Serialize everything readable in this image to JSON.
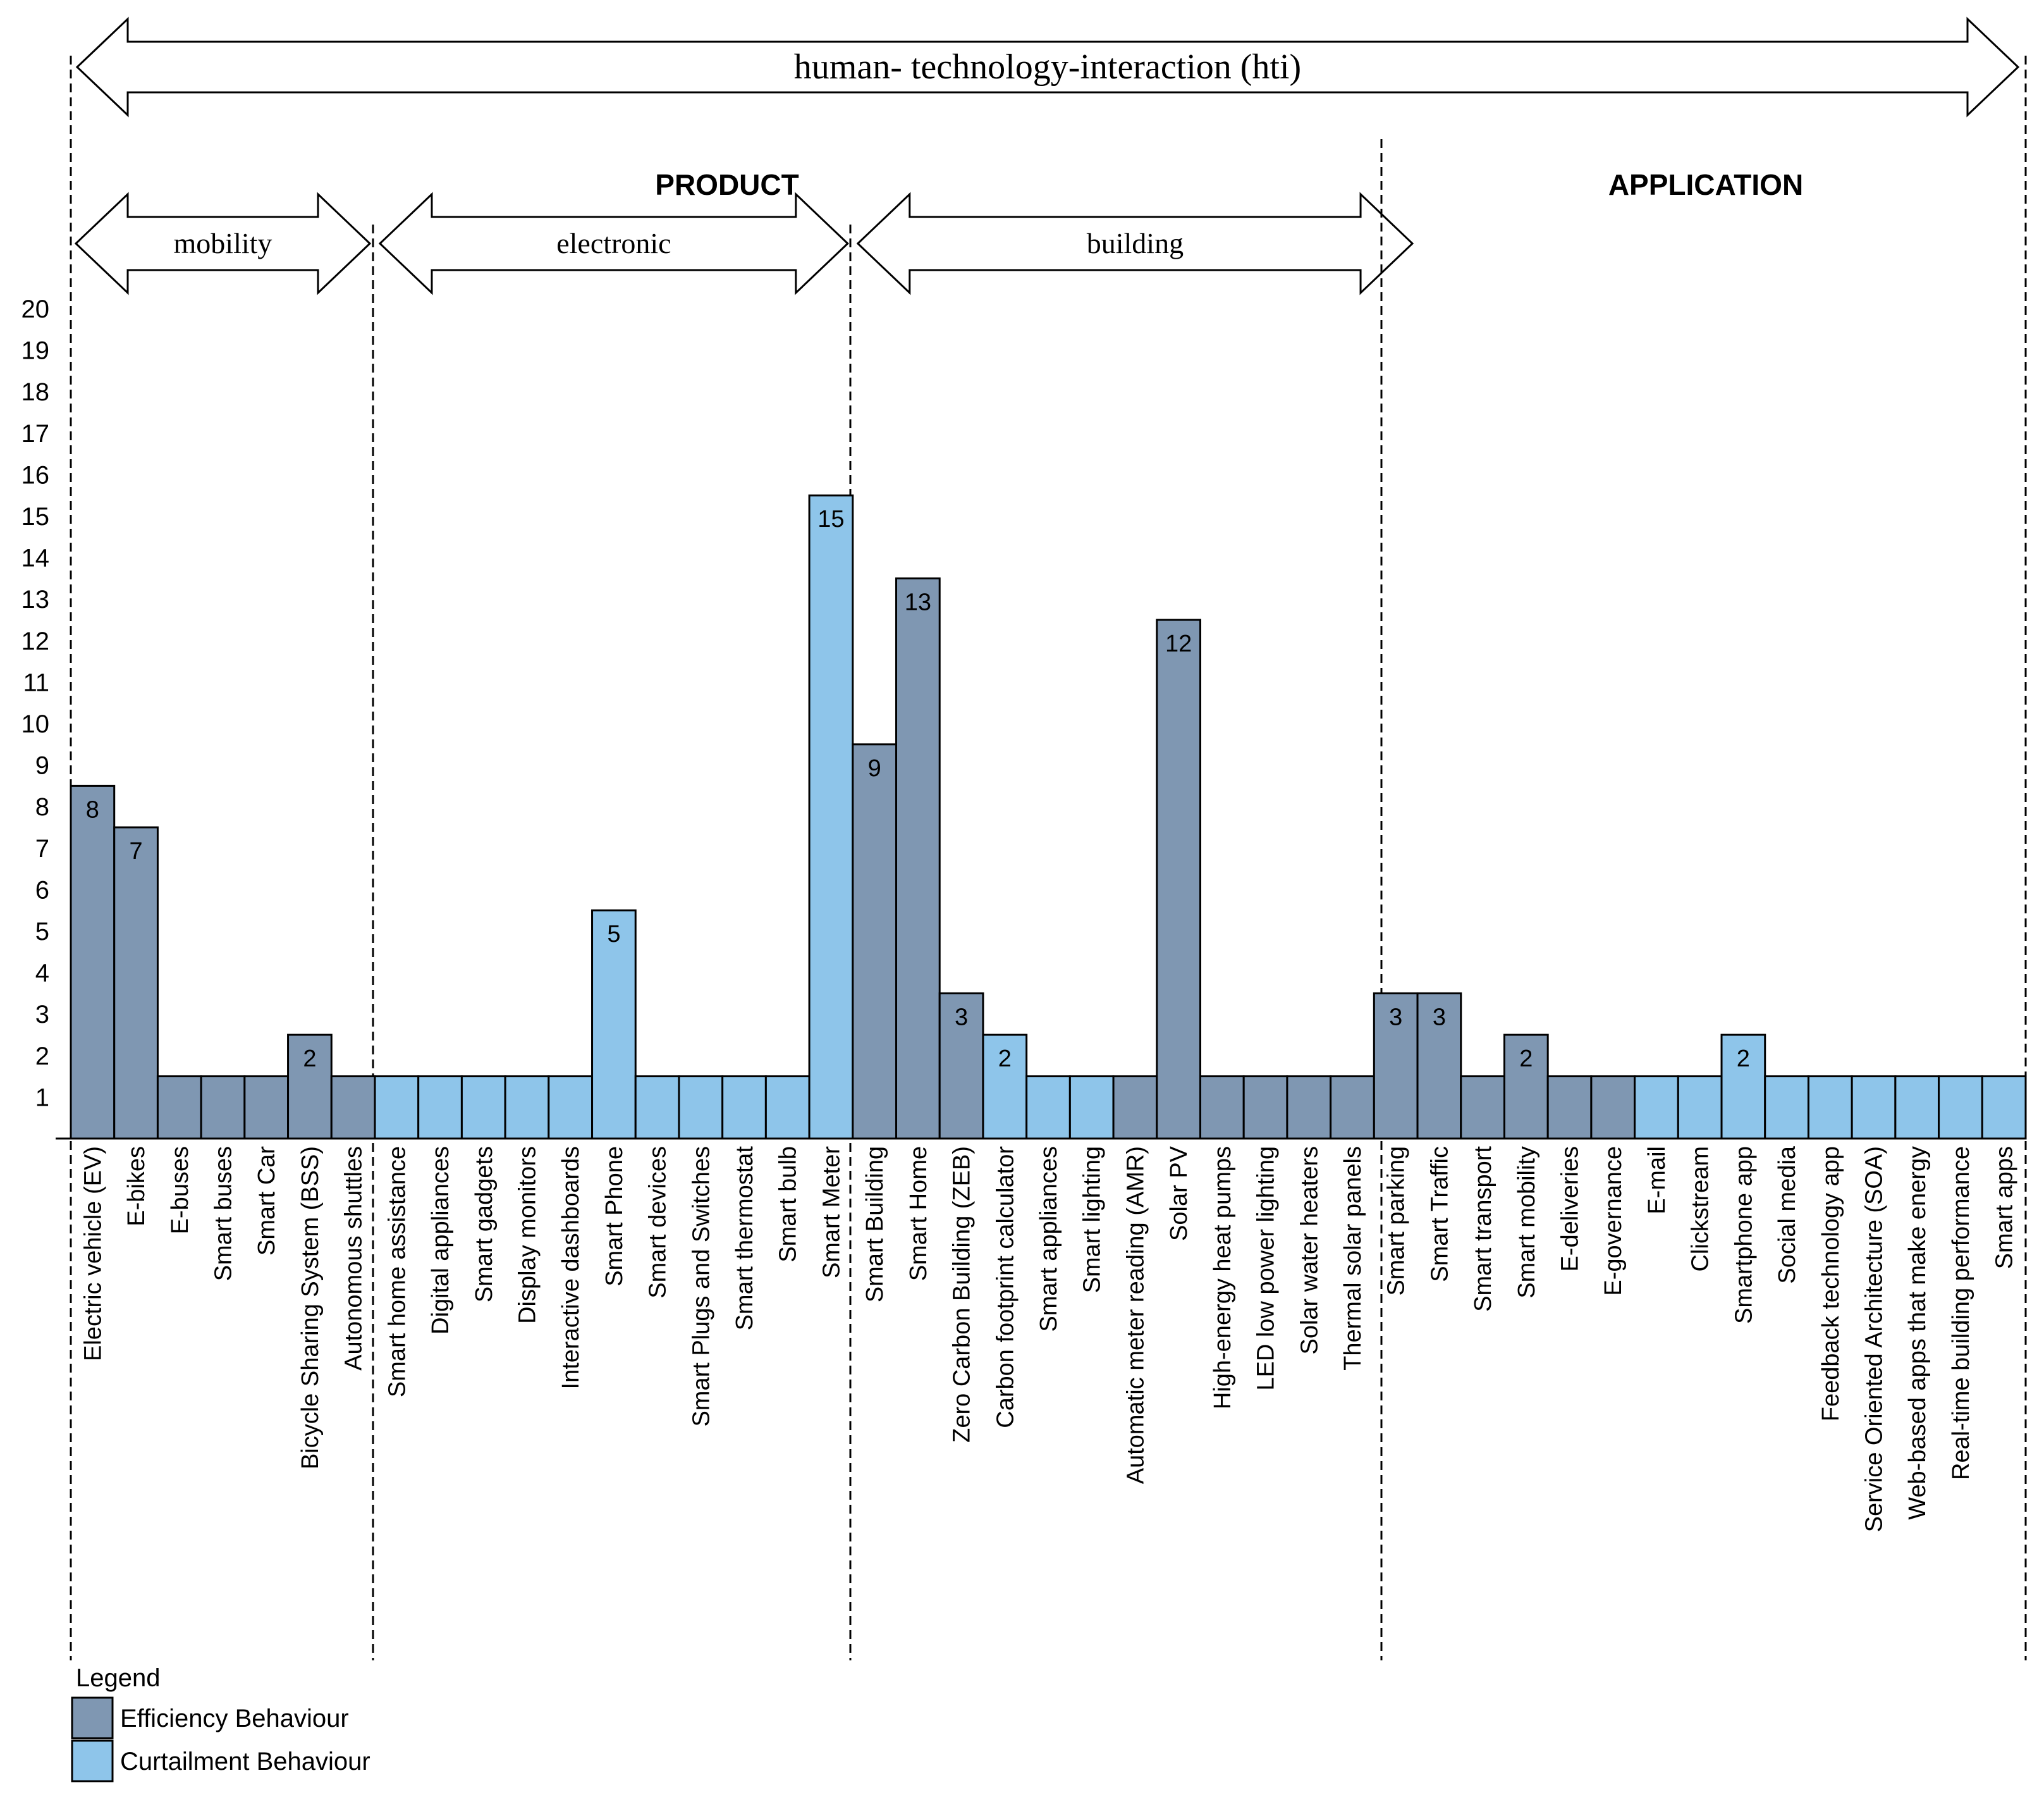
{
  "chart_data": {
    "type": "bar",
    "title": "human- technology-interaction (hti)",
    "ylim": [
      0,
      20
    ],
    "yticks": [
      1,
      2,
      3,
      4,
      5,
      6,
      7,
      8,
      9,
      10,
      11,
      12,
      13,
      14,
      15,
      16,
      17,
      18,
      19,
      20
    ],
    "xlabel": "",
    "ylabel": "",
    "section_headers": [
      "PRODUCT",
      "APPLICATION"
    ],
    "groups": [
      {
        "label": "mobility",
        "first": 0,
        "last": 6
      },
      {
        "label": "electronic",
        "first": 7,
        "last": 17
      },
      {
        "label": "building",
        "first": 18,
        "last": 30
      }
    ],
    "categories": [
      "Electric vehicle (EV)",
      "E-bikes",
      "E-buses",
      "Smart buses",
      "Smart Car",
      "Bicycle Sharing System (BSS)",
      "Autonomous shuttles",
      "Smart home assistance",
      "Digital appliances",
      "Smart gadgets",
      "Display monitors",
      "Interactive dashboards",
      "Smart Phone",
      "Smart devices",
      "Smart Plugs and Switches",
      "Smart thermostat",
      "Smart bulb",
      "Smart Meter",
      "Smart Building",
      "Smart Home",
      "Zero Carbon Building (ZEB)",
      "Carbon footprint calculator",
      "Smart appliances",
      "Smart lighting",
      "Automatic meter reading (AMR)",
      "Solar PV",
      "High-energy heat pumps",
      "LED low power lighting",
      "Solar water heaters",
      "Thermal solar panels",
      "Smart parking",
      "Smart Traffic",
      "Smart transport",
      "Smart mobility",
      "E-deliveries",
      "E-governance",
      "E-mail",
      "Clickstream",
      "Smartphone app",
      "Social media",
      "Feedback technology app",
      "Service Oriented Architecture (SOA)",
      "Web-based apps that make energy",
      "Real-time building performance",
      "Smart apps"
    ],
    "values": [
      8,
      7,
      1,
      1,
      1,
      2,
      1,
      1,
      1,
      1,
      1,
      1,
      5,
      1,
      1,
      1,
      1,
      15,
      9,
      13,
      3,
      2,
      1,
      1,
      1,
      12,
      1,
      1,
      1,
      1,
      3,
      3,
      1,
      2,
      1,
      1,
      1,
      1,
      2,
      1,
      1,
      1,
      1,
      1,
      1
    ],
    "behaviour": [
      "E",
      "E",
      "E",
      "E",
      "E",
      "E",
      "E",
      "C",
      "C",
      "C",
      "C",
      "C",
      "C",
      "C",
      "C",
      "C",
      "C",
      "C",
      "E",
      "E",
      "E",
      "C",
      "C",
      "C",
      "E",
      "E",
      "E",
      "E",
      "E",
      "E",
      "E",
      "E",
      "E",
      "E",
      "E",
      "E",
      "C",
      "C",
      "C",
      "C",
      "C",
      "C",
      "C",
      "C",
      "C"
    ],
    "legend": {
      "title": "Legend",
      "items": [
        {
          "key": "E",
          "label": "Efficiency Behaviour",
          "color": "#7f97b2"
        },
        {
          "key": "C",
          "label": "Curtailment Behaviour",
          "color": "#8ec5ea"
        }
      ],
      "placement": "bottom-left"
    }
  }
}
